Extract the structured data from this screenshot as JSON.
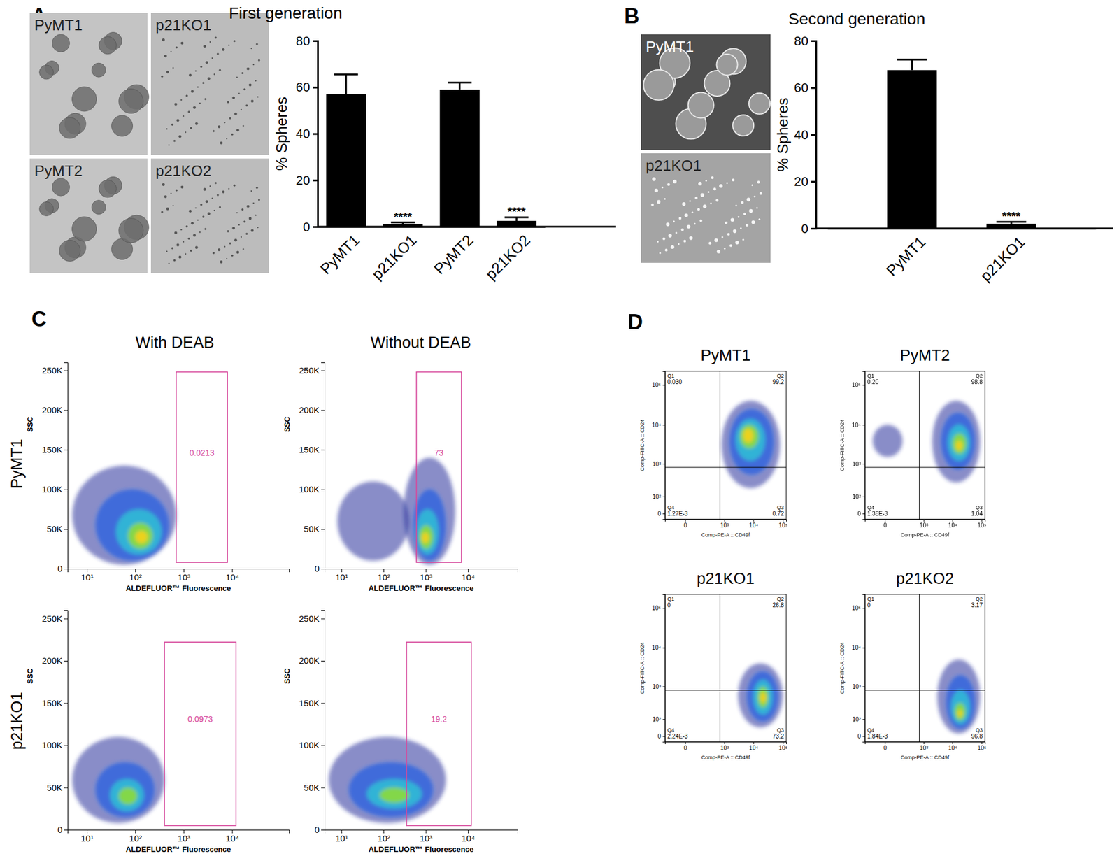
{
  "figure": {
    "panel_labels": [
      "A",
      "B",
      "C",
      "D"
    ],
    "micrographs_a": [
      "PyMT1",
      "p21KO1",
      "PyMT2",
      "p21KO2"
    ],
    "micrographs_b": [
      "PyMT1",
      "p21KO1"
    ],
    "c_column_titles": [
      "With DEAB",
      "Without DEAB"
    ],
    "c_row_titles": [
      "PyMT1",
      "p21KO1"
    ]
  },
  "chart_data": [
    {
      "type": "bar",
      "title": "First generation",
      "categories": [
        "PyMT1",
        "p21KO1",
        "PyMT2",
        "p21KO2"
      ],
      "values": [
        57,
        1,
        59,
        2.5
      ],
      "errors": [
        8.5,
        0.8,
        3,
        1.5
      ],
      "color": "#000000",
      "ylabel": "% Spheres",
      "ylim": [
        0,
        80
      ],
      "yticks": [
        0,
        20,
        40,
        60,
        80
      ],
      "annotations": [
        {
          "x": "p21KO1",
          "text": "****"
        },
        {
          "x": "p21KO2",
          "text": "****"
        }
      ]
    },
    {
      "type": "bar",
      "title": "Second generation",
      "categories": [
        "PyMT1",
        "p21KO1"
      ],
      "values": [
        67.5,
        2
      ],
      "errors": [
        4.5,
        0.8
      ],
      "color": "#000000",
      "ylabel": "% Spheres",
      "ylim": [
        0,
        80
      ],
      "yticks": [
        0,
        20,
        40,
        60,
        80
      ],
      "annotations": [
        {
          "x": "p21KO1",
          "text": "****"
        }
      ]
    },
    {
      "type": "density",
      "xlabel": "ALDEFLUOR™ Fluorescence",
      "ylabel": "SSC",
      "log": "x",
      "xlim": [
        4,
        150000
      ],
      "xticks": [
        {
          "value": 10,
          "label": "10¹"
        },
        {
          "value": 100,
          "label": "10²"
        },
        {
          "value": 1000,
          "label": "10³"
        },
        {
          "value": 10000,
          "label": "10⁴"
        }
      ],
      "ylim": [
        0,
        260000
      ],
      "yticks": [
        0,
        {
          "value": 50000,
          "label": "50K"
        },
        {
          "value": 100000,
          "label": "100K"
        },
        {
          "value": 150000,
          "label": "150K"
        },
        {
          "value": 200000,
          "label": "200K"
        },
        {
          "value": 250000,
          "label": "250K"
        }
      ],
      "gate": {
        "x": [
          700,
          8000
        ],
        "y": [
          8000,
          248000
        ],
        "percent": 0.0213
      },
      "contours": [
        {
          "level": 0,
          "x": [
            5,
            700
          ],
          "y": [
            5000,
            130000
          ]
        },
        {
          "level": 1,
          "x": [
            15,
            500
          ],
          "y": [
            10000,
            100000
          ]
        },
        {
          "level": 2,
          "x": [
            40,
            350
          ],
          "y": [
            18000,
            75000
          ]
        },
        {
          "level": 3,
          "x": [
            70,
            230
          ],
          "y": [
            25000,
            58000
          ]
        },
        {
          "level": 4,
          "x": [
            100,
            180
          ],
          "y": [
            32000,
            48000
          ]
        }
      ]
    },
    {
      "type": "density",
      "xlabel": "ALDEFLUOR™ Fluorescence",
      "ylabel": "SSC",
      "log": "x",
      "xlim": [
        4,
        150000
      ],
      "xticks": [
        {
          "value": 10,
          "label": "10¹"
        },
        {
          "value": 100,
          "label": "10²"
        },
        {
          "value": 1000,
          "label": "10³"
        },
        {
          "value": 10000,
          "label": "10⁴"
        }
      ],
      "ylim": [
        0,
        260000
      ],
      "yticks": [
        0,
        {
          "value": 50000,
          "label": "50K"
        },
        {
          "value": 100000,
          "label": "100K"
        },
        {
          "value": 150000,
          "label": "150K"
        },
        {
          "value": 200000,
          "label": "200K"
        },
        {
          "value": 250000,
          "label": "250K"
        }
      ],
      "gate": {
        "x": [
          600,
          7000
        ],
        "y": [
          8000,
          248000
        ],
        "percent": 73
      },
      "contours": [
        {
          "level": 0,
          "x": [
            8,
            400
          ],
          "y": [
            10000,
            110000
          ]
        },
        {
          "level": 0,
          "x": [
            300,
            5000
          ],
          "y": [
            5000,
            140000
          ]
        },
        {
          "level": 1,
          "x": [
            500,
            3000
          ],
          "y": [
            10000,
            100000
          ]
        },
        {
          "level": 2,
          "x": [
            600,
            2000
          ],
          "y": [
            18000,
            75000
          ]
        },
        {
          "level": 3,
          "x": [
            700,
            1500
          ],
          "y": [
            25000,
            55000
          ]
        },
        {
          "level": 4,
          "x": [
            800,
            1200
          ],
          "y": [
            32000,
            46000
          ]
        }
      ]
    },
    {
      "type": "density",
      "xlabel": "ALDEFLUOR™ Fluorescence",
      "ylabel": "SSC",
      "log": "x",
      "xlim": [
        4,
        150000
      ],
      "xticks": [
        {
          "value": 10,
          "label": "10¹"
        },
        {
          "value": 100,
          "label": "10²"
        },
        {
          "value": 1000,
          "label": "10³"
        },
        {
          "value": 10000,
          "label": "10⁴"
        }
      ],
      "ylim": [
        0,
        260000
      ],
      "yticks": [
        0,
        {
          "value": 50000,
          "label": "50K"
        },
        {
          "value": 100000,
          "label": "100K"
        },
        {
          "value": 150000,
          "label": "150K"
        },
        {
          "value": 200000,
          "label": "200K"
        },
        {
          "value": 250000,
          "label": "250K"
        }
      ],
      "gate": {
        "x": [
          400,
          12000
        ],
        "y": [
          5000,
          222000
        ],
        "percent": 0.0973
      },
      "contours": [
        {
          "level": 0,
          "x": [
            5,
            400
          ],
          "y": [
            8000,
            110000
          ]
        },
        {
          "level": 1,
          "x": [
            15,
            250
          ],
          "y": [
            15000,
            80000
          ]
        },
        {
          "level": 2,
          "x": [
            30,
            150
          ],
          "y": [
            22000,
            60000
          ]
        },
        {
          "level": 3,
          "x": [
            45,
            110
          ],
          "y": [
            30000,
            50000
          ]
        }
      ]
    },
    {
      "type": "density",
      "xlabel": "ALDEFLUOR™ Fluorescence",
      "ylabel": "SSC",
      "log": "x",
      "xlim": [
        4,
        150000
      ],
      "xticks": [
        {
          "value": 10,
          "label": "10¹"
        },
        {
          "value": 100,
          "label": "10²"
        },
        {
          "value": 1000,
          "label": "10³"
        },
        {
          "value": 10000,
          "label": "10⁴"
        }
      ],
      "ylim": [
        0,
        260000
      ],
      "yticks": [
        0,
        {
          "value": 50000,
          "label": "50K"
        },
        {
          "value": 100000,
          "label": "100K"
        },
        {
          "value": 150000,
          "label": "150K"
        },
        {
          "value": 200000,
          "label": "200K"
        },
        {
          "value": 250000,
          "label": "250K"
        }
      ],
      "gate": {
        "x": [
          350,
          12000
        ],
        "y": [
          5000,
          222000
        ],
        "percent": 19.2
      },
      "contours": [
        {
          "level": 0,
          "x": [
            5,
            3000
          ],
          "y": [
            8000,
            110000
          ]
        },
        {
          "level": 1,
          "x": [
            15,
            1500
          ],
          "y": [
            15000,
            80000
          ]
        },
        {
          "level": 2,
          "x": [
            40,
            800
          ],
          "y": [
            25000,
            60000
          ]
        },
        {
          "level": 3,
          "x": [
            80,
            400
          ],
          "y": [
            32000,
            50000
          ]
        }
      ]
    },
    {
      "type": "density",
      "title": "PyMT1",
      "xlabel": "Comp-PE-A :: CD49f",
      "ylabel": "Comp-FITC-A :: CD24",
      "log": true,
      "xlim": [
        -190,
        130000
      ],
      "xticks": [
        0,
        {
          "value": 1000,
          "label": "10³"
        },
        {
          "value": 10000,
          "label": "10⁴"
        },
        {
          "value": 100000,
          "label": "10⁵"
        }
      ],
      "ylim": [
        -23,
        220000
      ],
      "yticks": [
        0,
        {
          "value": 100,
          "label": "10²"
        },
        {
          "value": 1000,
          "label": "10³"
        },
        {
          "value": 10000,
          "label": "10⁴"
        },
        {
          "value": 100000,
          "label": "10⁵"
        }
      ],
      "quadrant_x": 700,
      "quadrant_y": 800,
      "quadrants": [
        {
          "name": "Q1",
          "value": 0.03,
          "label": "0.030"
        },
        {
          "name": "Q2",
          "value": 99.2
        },
        {
          "name": "Q3",
          "value": 0.72
        },
        {
          "name": "Q4",
          "value": 0.00127,
          "label": "1.27E-3"
        }
      ],
      "contours": [
        {
          "level": 0,
          "x": [
            800,
            80000
          ],
          "y": [
            200,
            40000
          ]
        },
        {
          "level": 1,
          "x": [
            1500,
            50000
          ],
          "y": [
            500,
            25000
          ]
        },
        {
          "level": 2,
          "x": [
            2500,
            25000
          ],
          "y": [
            1200,
            14000
          ]
        },
        {
          "level": 3,
          "x": [
            3500,
            15000
          ],
          "y": [
            2500,
            10000
          ]
        },
        {
          "level": 4,
          "x": [
            4500,
            10000
          ],
          "y": [
            3500,
            8000
          ]
        }
      ]
    },
    {
      "type": "density",
      "title": "PyMT2",
      "xlabel": "Comp-PE-A :: CD49f",
      "ylabel": "Comp-FITC-A :: CD24",
      "log": true,
      "xlim": [
        -190,
        130000
      ],
      "xticks": [
        0,
        {
          "value": 1000,
          "label": "10³"
        },
        {
          "value": 10000,
          "label": "10⁴"
        },
        {
          "value": 100000,
          "label": "10⁵"
        }
      ],
      "ylim": [
        -23,
        220000
      ],
      "yticks": [
        0,
        {
          "value": 100,
          "label": "10²"
        },
        {
          "value": 1000,
          "label": "10³"
        },
        {
          "value": 10000,
          "label": "10⁴"
        },
        {
          "value": 100000,
          "label": "10⁵"
        }
      ],
      "quadrant_x": 700,
      "quadrant_y": 800,
      "quadrants": [
        {
          "name": "Q1",
          "value": 0.2,
          "label": "0.20"
        },
        {
          "name": "Q2",
          "value": 98.8
        },
        {
          "name": "Q3",
          "value": 1.04
        },
        {
          "name": "Q4",
          "value": 0.00138,
          "label": "1.38E-3"
        }
      ],
      "contours": [
        {
          "level": 0,
          "x": [
            -80,
            150
          ],
          "y": [
            1500,
            10000
          ]
        },
        {
          "level": 0,
          "x": [
            2000,
            90000
          ],
          "y": [
            300,
            40000
          ]
        },
        {
          "level": 1,
          "x": [
            4000,
            60000
          ],
          "y": [
            700,
            20000
          ]
        },
        {
          "level": 2,
          "x": [
            7000,
            40000
          ],
          "y": [
            1200,
            10000
          ]
        },
        {
          "level": 3,
          "x": [
            10000,
            30000
          ],
          "y": [
            1800,
            6000
          ]
        },
        {
          "level": 4,
          "x": [
            13000,
            22000
          ],
          "y": [
            2200,
            4000
          ]
        }
      ]
    },
    {
      "type": "density",
      "title": "p21KO1",
      "xlabel": "Comp-PE-A :: CD49f",
      "ylabel": "Comp-FITC-A :: CD24",
      "log": true,
      "xlim": [
        -190,
        130000
      ],
      "xticks": [
        0,
        {
          "value": 1000,
          "label": "10³"
        },
        {
          "value": 10000,
          "label": "10⁴"
        },
        {
          "value": 100000,
          "label": "10⁵"
        }
      ],
      "ylim": [
        -23,
        220000
      ],
      "yticks": [
        0,
        {
          "value": 100,
          "label": "10²"
        },
        {
          "value": 1000,
          "label": "10³"
        },
        {
          "value": 10000,
          "label": "10⁴"
        },
        {
          "value": 100000,
          "label": "10⁵"
        }
      ],
      "quadrant_x": 700,
      "quadrant_y": 800,
      "quadrants": [
        {
          "name": "Q1",
          "value": 0
        },
        {
          "name": "Q2",
          "value": 26.8
        },
        {
          "name": "Q3",
          "value": 73.2
        },
        {
          "name": "Q4",
          "value": 0.00224,
          "label": "2.24E-3"
        }
      ],
      "contours": [
        {
          "level": 0,
          "x": [
            3000,
            100000
          ],
          "y": [
            40,
            4000
          ]
        },
        {
          "level": 1,
          "x": [
            6000,
            70000
          ],
          "y": [
            80,
            2500
          ]
        },
        {
          "level": 2,
          "x": [
            10000,
            45000
          ],
          "y": [
            150,
            1500
          ]
        },
        {
          "level": 3,
          "x": [
            14000,
            32000
          ],
          "y": [
            250,
            1000
          ]
        },
        {
          "level": 4,
          "x": [
            17000,
            27000
          ],
          "y": [
            350,
            700
          ]
        }
      ]
    },
    {
      "type": "density",
      "title": "p21KO2",
      "xlabel": "Comp-PE-A :: CD49f",
      "ylabel": "Comp-FITC-A :: CD24",
      "log": true,
      "xlim": [
        -190,
        130000
      ],
      "xticks": [
        0,
        {
          "value": 1000,
          "label": "10³"
        },
        {
          "value": 10000,
          "label": "10⁴"
        },
        {
          "value": 100000,
          "label": "10⁵"
        }
      ],
      "ylim": [
        -23,
        220000
      ],
      "yticks": [
        0,
        {
          "value": 100,
          "label": "10²"
        },
        {
          "value": 1000,
          "label": "10³"
        },
        {
          "value": 10000,
          "label": "10⁴"
        },
        {
          "value": 100000,
          "label": "10⁵"
        }
      ],
      "quadrant_x": 700,
      "quadrant_y": 800,
      "quadrants": [
        {
          "name": "Q1",
          "value": 0
        },
        {
          "name": "Q2",
          "value": 3.17
        },
        {
          "name": "Q3",
          "value": 96.8
        },
        {
          "name": "Q4",
          "value": 0.00184,
          "label": "1.84E-3"
        }
      ],
      "contours": [
        {
          "level": 0,
          "x": [
            3000,
            90000
          ],
          "y": [
            10,
            5000
          ]
        },
        {
          "level": 1,
          "x": [
            6000,
            60000
          ],
          "y": [
            30,
            2000
          ]
        },
        {
          "level": 2,
          "x": [
            9000,
            40000
          ],
          "y": [
            60,
            800
          ]
        },
        {
          "level": 3,
          "x": [
            12000,
            28000
          ],
          "y": [
            90,
            350
          ]
        },
        {
          "level": 4,
          "x": [
            15000,
            22000
          ],
          "y": [
            120,
            220
          ]
        }
      ]
    }
  ]
}
